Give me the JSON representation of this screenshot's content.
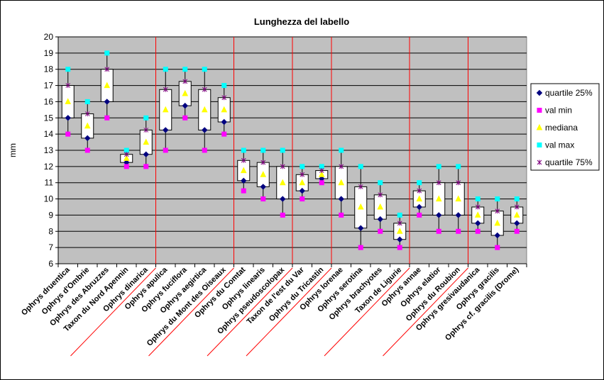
{
  "chart_data": {
    "type": "box",
    "title": "Lunghezza del labello",
    "ylabel": "mm",
    "ylim": [
      6,
      20
    ],
    "yticks": [
      6,
      7,
      8,
      9,
      10,
      11,
      12,
      13,
      14,
      15,
      16,
      17,
      18,
      19,
      20
    ],
    "grid": true,
    "legend_position": "right",
    "categories": [
      "Ophrys druentica",
      "Ophrys d'Ombrie",
      "Ophrys des Abruzzes",
      "Taxon du Nord Apennin",
      "Ophrys dinarica",
      "Ophrys apulica",
      "Ophrys fuciflora",
      "Ophrys aegirtica",
      "Ophrys du Mont des Oiseaux",
      "Ophrys du Comtat",
      "Ophrys linearis",
      "Ophrys pseudoscolopax",
      "Taxon de l'est du Var",
      "Ophrys du Tricastin",
      "Ophrys lorenae",
      "Ophrys serotina",
      "Ophrys brachyotes",
      "Taxon de Ligurie",
      "Ophrys annae",
      "Ophrys elatior",
      "Ophrys du Roubion",
      "Ophrys gresivaudanica",
      "Ophrys gracilis",
      "Ophrys cf. gracilis (Drome)"
    ],
    "series": [
      {
        "name": "quartile 25%",
        "color": "#000080",
        "marker": "diamond",
        "values": [
          15,
          13.75,
          16,
          12.25,
          12.75,
          14.25,
          15.75,
          14.25,
          14.75,
          11.125,
          10.75,
          10,
          10.5,
          11.25,
          10,
          8.2,
          8.75,
          7.5,
          9.5,
          9,
          9,
          8.5,
          7.75,
          8.5
        ]
      },
      {
        "name": "val min",
        "color": "#ff00ff",
        "marker": "square",
        "values": [
          14,
          13,
          15,
          12,
          12,
          13,
          15,
          13,
          14,
          10.5,
          10,
          9,
          10,
          11,
          9,
          7,
          8,
          7,
          9,
          8,
          8,
          8,
          7,
          8
        ]
      },
      {
        "name": "mediana",
        "color": "#ffff00",
        "marker": "triangle",
        "values": [
          16,
          14.5,
          17,
          12.5,
          13.5,
          15.5,
          16.5,
          15.5,
          15.5,
          11.75,
          11.5,
          11,
          11,
          11.5,
          11,
          9.5,
          9.5,
          8,
          10,
          10,
          10,
          9,
          8.5,
          9
        ]
      },
      {
        "name": "val max",
        "color": "#00ffff",
        "marker": "square",
        "values": [
          18,
          16,
          19,
          13,
          15,
          18,
          18,
          18,
          17,
          13,
          13,
          13,
          12,
          12,
          13,
          12,
          11,
          9,
          11,
          12,
          12,
          10,
          10,
          10
        ]
      },
      {
        "name": "quartile 75%",
        "color": "#800080",
        "marker": "star",
        "values": [
          17,
          15.25,
          18,
          12.75,
          14.25,
          16.75,
          17.25,
          16.75,
          16.25,
          12.375,
          12.25,
          12,
          11.5,
          11.75,
          12,
          10.75,
          10.25,
          8.5,
          10.5,
          11,
          11,
          9.5,
          9.25,
          9.5
        ]
      }
    ],
    "group_separators_after": [
      5,
      9,
      12,
      14,
      18,
      21
    ]
  }
}
